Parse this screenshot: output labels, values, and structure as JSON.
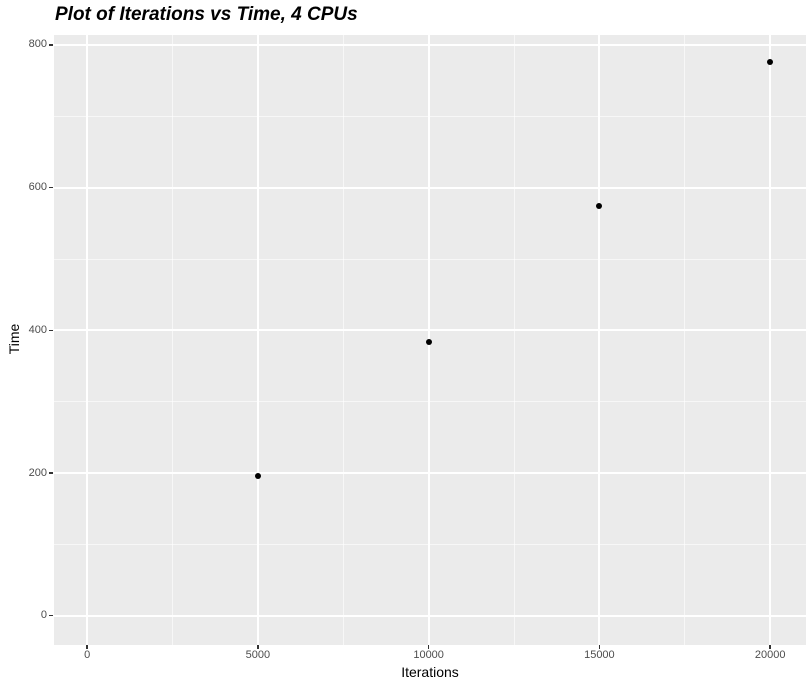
{
  "chart_data": {
    "type": "scatter",
    "title": "Plot of Iterations vs Time, 4 CPUs",
    "xlabel": "Iterations",
    "ylabel": "Time",
    "points": [
      {
        "x": 5000,
        "y": 196
      },
      {
        "x": 10000,
        "y": 384
      },
      {
        "x": 15000,
        "y": 575
      },
      {
        "x": 20000,
        "y": 776
      }
    ],
    "x_ticks": [
      0,
      5000,
      10000,
      15000,
      20000
    ],
    "x_tick_labels": [
      "0",
      "5000",
      "10000",
      "15000",
      "20000"
    ],
    "y_ticks": [
      0,
      200,
      400,
      600,
      800
    ],
    "y_tick_labels": [
      "0",
      "200",
      "400",
      "600",
      "800"
    ],
    "x_minor_breaks": [
      2500,
      7500,
      12500,
      17500
    ],
    "y_minor_breaks": [
      100,
      300,
      500,
      700
    ],
    "xlim": [
      -970,
      21050
    ],
    "ylim": [
      -41,
      814
    ],
    "grid": "major-and-minor",
    "legend": "none",
    "colors": {
      "panel_background": "#EBEBEB",
      "gridline": "#FFFFFF",
      "point": "#000000",
      "tick_label": "#4D4D4D",
      "tick_mark": "#333333",
      "title": "#000000",
      "axis_title": "#000000"
    }
  }
}
